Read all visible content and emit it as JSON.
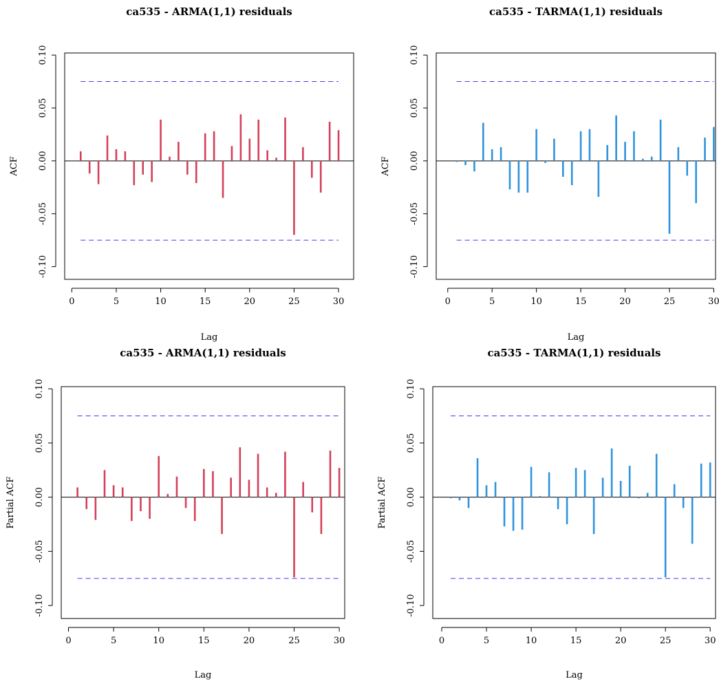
{
  "figure": {
    "layout": "2x2 grid"
  },
  "chart_data": [
    {
      "type": "bar",
      "subtype": "acf",
      "title": "ca535 - ARMA(1,1) residuals",
      "xlabel": "Lag",
      "ylabel": "ACF",
      "color": "#d43f5a",
      "xlim": [
        0,
        30
      ],
      "ylim": [
        -0.1,
        0.1
      ],
      "xticks": [
        "0",
        "5",
        "10",
        "15",
        "20",
        "25",
        "30"
      ],
      "yticks": [
        "-0.10",
        "-0.05",
        "0.00",
        "0.05",
        "0.10"
      ],
      "x": [
        1,
        2,
        3,
        4,
        5,
        6,
        7,
        8,
        9,
        10,
        11,
        12,
        13,
        14,
        15,
        16,
        17,
        18,
        19,
        20,
        21,
        22,
        23,
        24,
        25,
        26,
        27,
        28,
        29,
        30
      ],
      "values": [
        0.009,
        -0.012,
        -0.022,
        0.024,
        0.011,
        0.009,
        -0.023,
        -0.013,
        -0.02,
        0.039,
        0.004,
        0.018,
        -0.013,
        -0.021,
        0.026,
        0.028,
        -0.035,
        0.014,
        0.044,
        0.021,
        0.039,
        0.01,
        0.003,
        0.041,
        -0.07,
        0.013,
        -0.016,
        -0.03,
        0.037,
        0.029
      ],
      "confidence_band": [
        0.075,
        -0.075
      ]
    },
    {
      "type": "bar",
      "subtype": "acf",
      "title": "ca535 - TARMA(1,1) residuals",
      "xlabel": "Lag",
      "ylabel": "ACF",
      "color": "#2e93dd",
      "xlim": [
        0,
        30
      ],
      "ylim": [
        -0.1,
        0.1
      ],
      "xticks": [
        "0",
        "5",
        "10",
        "15",
        "20",
        "25",
        "30"
      ],
      "yticks": [
        "-0.10",
        "-0.05",
        "0.00",
        "0.05",
        "0.10"
      ],
      "x": [
        1,
        2,
        3,
        4,
        5,
        6,
        7,
        8,
        9,
        10,
        11,
        12,
        13,
        14,
        15,
        16,
        17,
        18,
        19,
        20,
        21,
        22,
        23,
        24,
        25,
        26,
        27,
        28,
        29,
        30
      ],
      "values": [
        -0.001,
        -0.004,
        -0.01,
        0.036,
        0.011,
        0.013,
        -0.027,
        -0.03,
        -0.03,
        0.03,
        -0.002,
        0.021,
        -0.015,
        -0.023,
        0.028,
        0.03,
        -0.034,
        0.015,
        0.043,
        0.018,
        0.028,
        0.002,
        0.004,
        0.039,
        -0.069,
        0.013,
        -0.014,
        -0.04,
        0.022,
        0.032
      ],
      "confidence_band": [
        0.075,
        -0.075
      ]
    },
    {
      "type": "bar",
      "subtype": "pacf",
      "title": "ca535 - ARMA(1,1) residuals",
      "xlabel": "Lag",
      "ylabel": "Partial ACF",
      "color": "#d43f5a",
      "xlim": [
        0,
        30
      ],
      "ylim": [
        -0.1,
        0.1
      ],
      "xticks": [
        "0",
        "5",
        "10",
        "15",
        "20",
        "25",
        "30"
      ],
      "yticks": [
        "-0.10",
        "-0.05",
        "0.00",
        "0.05",
        "0.10"
      ],
      "x": [
        1,
        2,
        3,
        4,
        5,
        6,
        7,
        8,
        9,
        10,
        11,
        12,
        13,
        14,
        15,
        16,
        17,
        18,
        19,
        20,
        21,
        22,
        23,
        24,
        25,
        26,
        27,
        28,
        29,
        30
      ],
      "values": [
        0.009,
        -0.011,
        -0.021,
        0.025,
        0.011,
        0.009,
        -0.022,
        -0.013,
        -0.02,
        0.038,
        0.003,
        0.019,
        -0.01,
        -0.022,
        0.026,
        0.024,
        -0.034,
        0.018,
        0.046,
        0.016,
        0.04,
        0.009,
        0.004,
        0.042,
        -0.074,
        0.014,
        -0.014,
        -0.034,
        0.043,
        0.027
      ],
      "confidence_band": [
        0.075,
        -0.075
      ]
    },
    {
      "type": "bar",
      "subtype": "pacf",
      "title": "ca535 - TARMA(1,1) residuals",
      "xlabel": "Lag",
      "ylabel": "Partial ACF",
      "color": "#2e93dd",
      "xlim": [
        0,
        30
      ],
      "ylim": [
        -0.1,
        0.1
      ],
      "xticks": [
        "0",
        "5",
        "10",
        "15",
        "20",
        "25",
        "30"
      ],
      "yticks": [
        "-0.10",
        "-0.05",
        "0.00",
        "0.05",
        "0.10"
      ],
      "x": [
        1,
        2,
        3,
        4,
        5,
        6,
        7,
        8,
        9,
        10,
        11,
        12,
        13,
        14,
        15,
        16,
        17,
        18,
        19,
        20,
        21,
        22,
        23,
        24,
        25,
        26,
        27,
        28,
        29,
        30
      ],
      "values": [
        -0.001,
        -0.003,
        -0.01,
        0.036,
        0.011,
        0.014,
        -0.027,
        -0.031,
        -0.03,
        0.028,
        0.001,
        0.023,
        -0.011,
        -0.025,
        0.027,
        0.025,
        -0.034,
        0.018,
        0.045,
        0.015,
        0.029,
        -0.001,
        0.004,
        0.04,
        -0.074,
        0.012,
        -0.01,
        -0.043,
        0.031,
        0.032
      ],
      "confidence_band": [
        0.075,
        -0.075
      ]
    }
  ]
}
